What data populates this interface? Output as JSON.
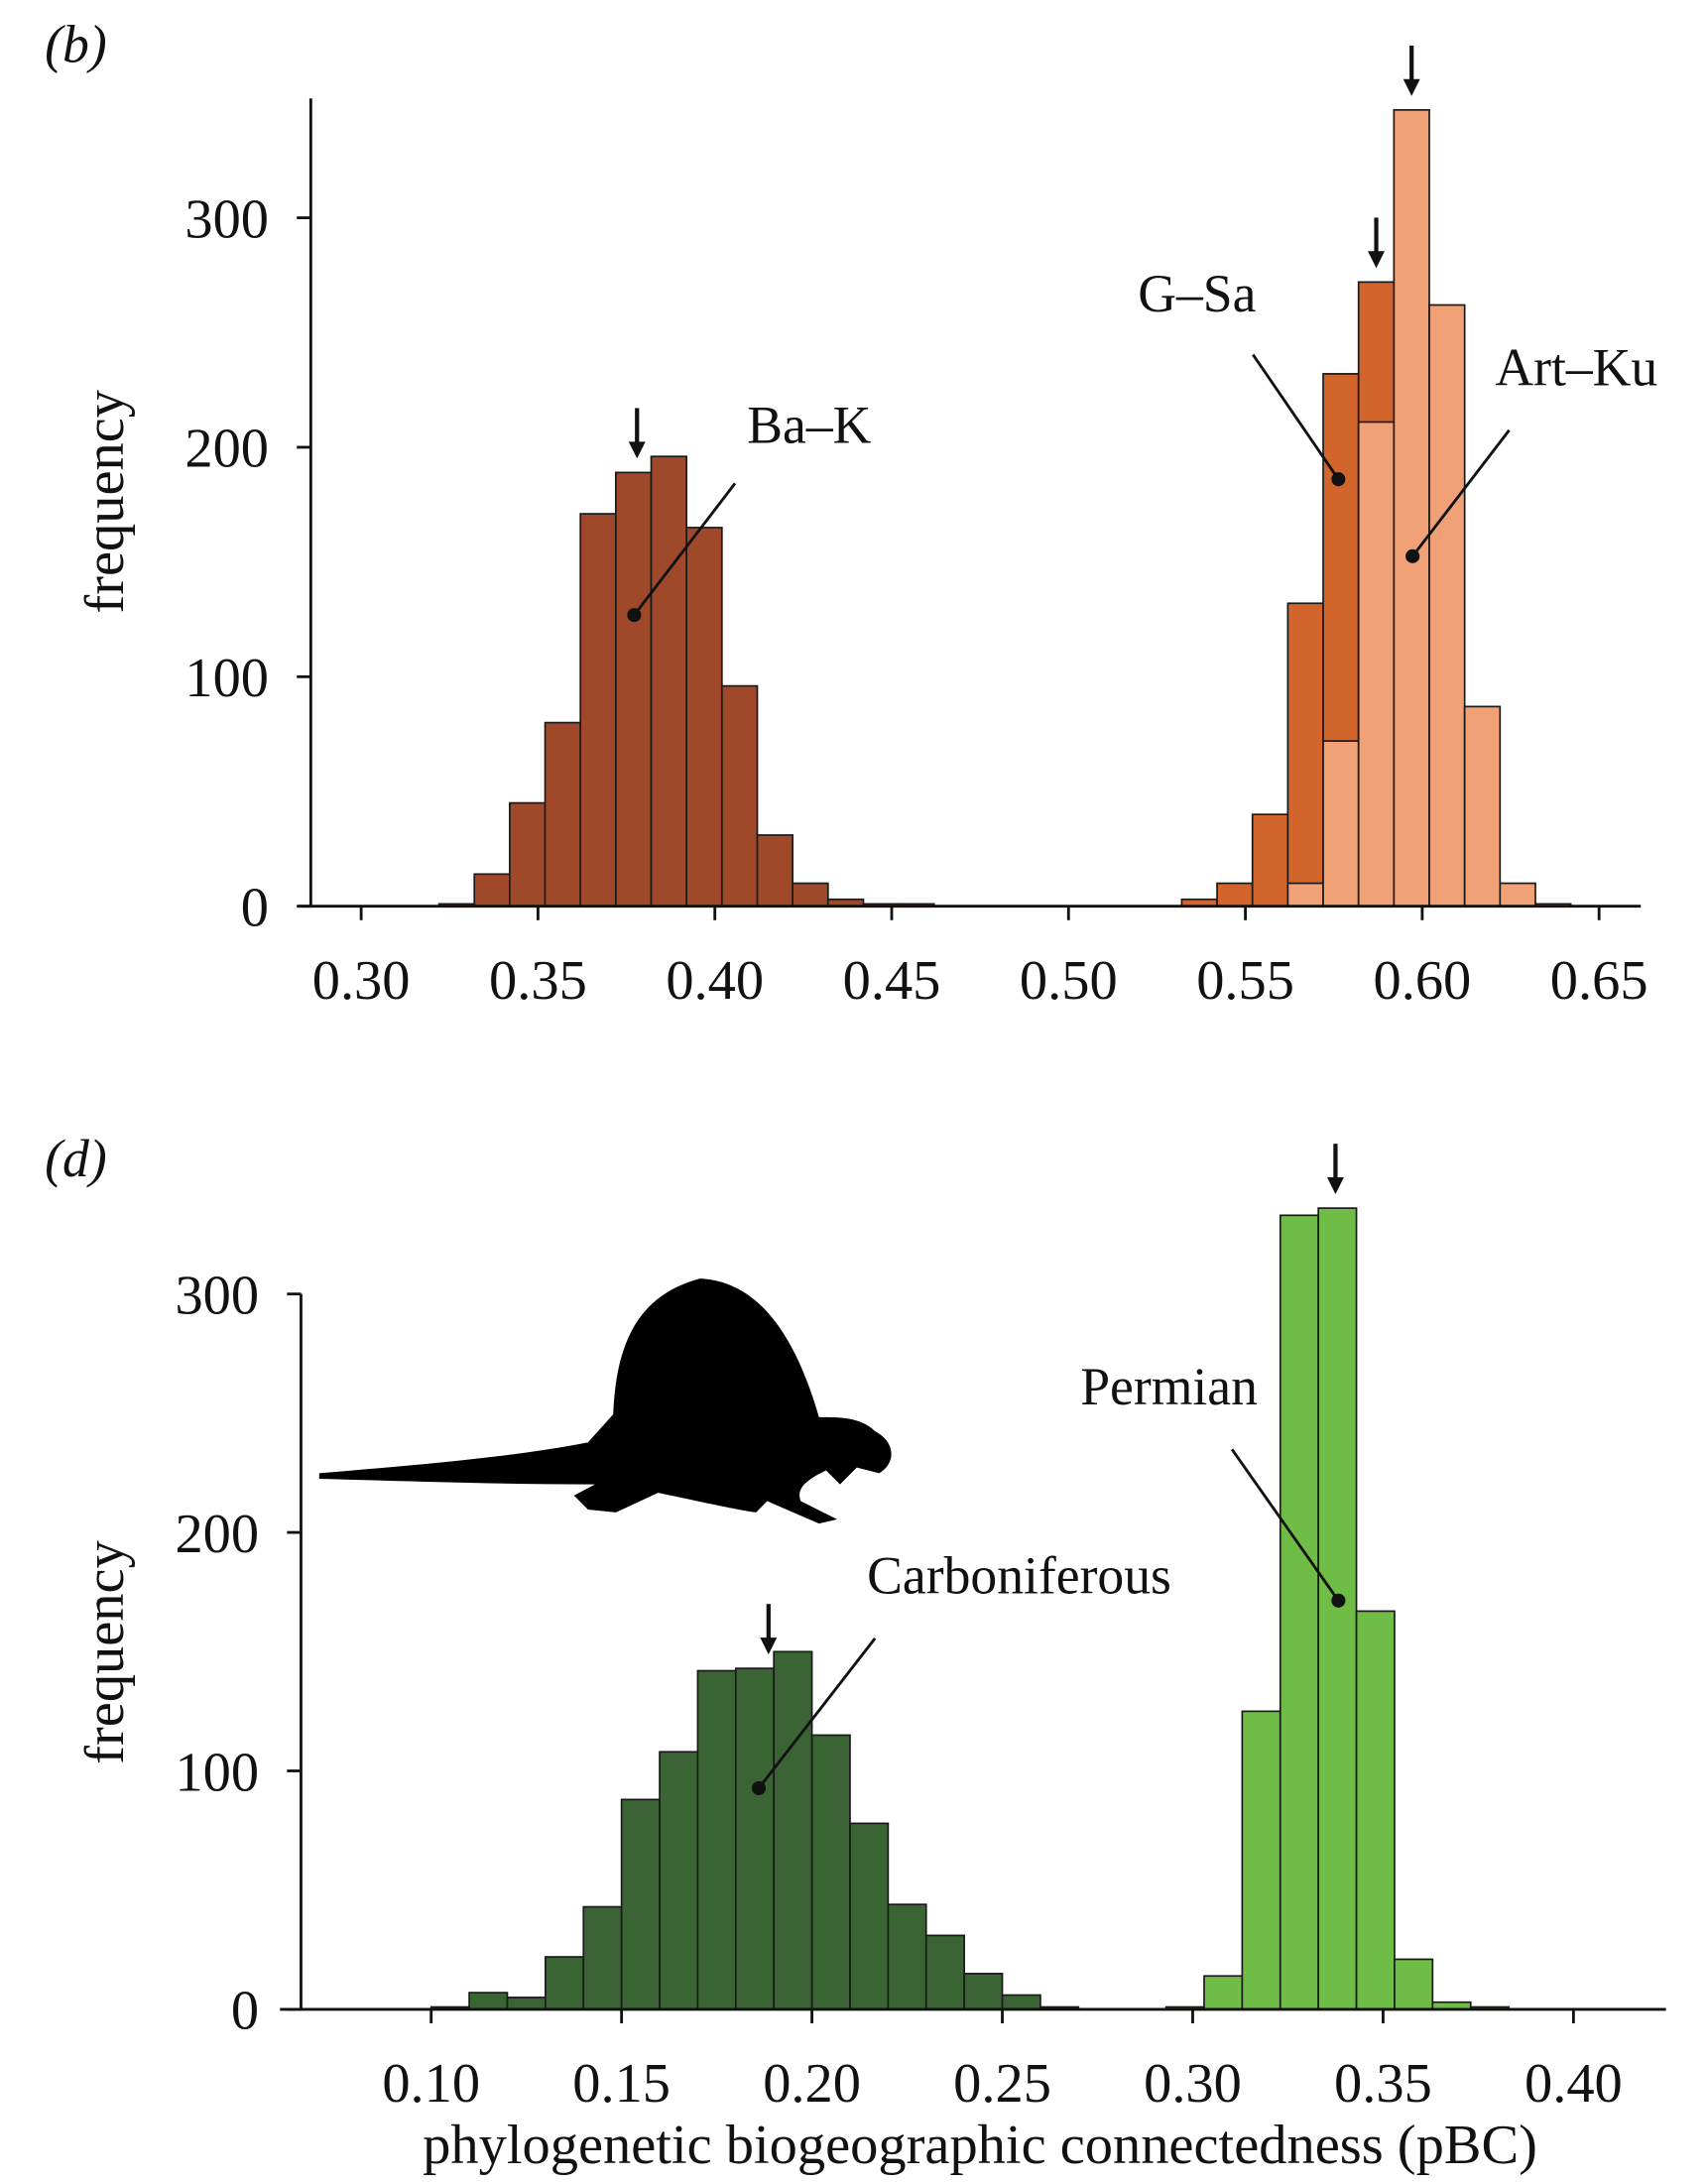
{
  "chart_data": [
    {
      "type": "histogram",
      "panel_label": "(b)",
      "ylabel": "frequency",
      "xlim": [
        0.2822,
        0.6618
      ],
      "ylim": [
        0,
        352
      ],
      "xticks": [
        {
          "value": 0.3,
          "label": "0.30"
        },
        {
          "value": 0.35,
          "label": "0.35"
        },
        {
          "value": 0.4,
          "label": "0.40"
        },
        {
          "value": 0.45,
          "label": "0.45"
        },
        {
          "value": 0.5,
          "label": "0.50"
        },
        {
          "value": 0.55,
          "label": "0.55"
        },
        {
          "value": 0.6,
          "label": "0.60"
        },
        {
          "value": 0.65,
          "label": "0.65"
        }
      ],
      "yticks": [
        0,
        100,
        200,
        300
      ],
      "series": [
        {
          "name": "Ba–K",
          "color": "#a0492a",
          "bins": [
            0.322,
            0.332,
            0.342,
            0.352,
            0.362,
            0.372,
            0.382,
            0.392,
            0.402,
            0.412,
            0.422,
            0.432,
            0.442,
            0.452,
            0.462
          ],
          "values": [
            1,
            14,
            45,
            80,
            171,
            189,
            196,
            165,
            96,
            31,
            10,
            3,
            1,
            1
          ],
          "arrow_x": 0.378
        },
        {
          "name": "G–Sa",
          "color": "#d2652b",
          "bins": [
            0.532,
            0.542,
            0.552,
            0.562,
            0.572,
            0.582,
            0.592
          ],
          "values": [
            3,
            10,
            40,
            132,
            232,
            272
          ],
          "arrow_x": 0.587
        },
        {
          "name": "Art–Ku",
          "color": "#f0a175",
          "bins": [
            0.562,
            0.572,
            0.582,
            0.592,
            0.602,
            0.612,
            0.622,
            0.632,
            0.642
          ],
          "values": [
            10,
            72,
            211,
            347,
            262,
            87,
            10,
            1
          ],
          "arrow_x": 0.597
        }
      ]
    },
    {
      "type": "histogram",
      "panel_label": "(d)",
      "ylabel": "frequency",
      "xlabel": "phylogenetic biogeographic connectedness (pBC)",
      "xlim": [
        0.0603,
        0.4243
      ],
      "ylim": [
        0,
        300
      ],
      "xticks": [
        {
          "value": 0.1,
          "label": "0.10"
        },
        {
          "value": 0.15,
          "label": "0.15"
        },
        {
          "value": 0.2,
          "label": "0.20"
        },
        {
          "value": 0.25,
          "label": "0.25"
        },
        {
          "value": 0.3,
          "label": "0.30"
        },
        {
          "value": 0.35,
          "label": "0.35"
        },
        {
          "value": 0.4,
          "label": "0.40"
        }
      ],
      "yticks": [
        0,
        100,
        200,
        300
      ],
      "series": [
        {
          "name": "Carboniferous",
          "color": "#3b6434",
          "bins": [
            0.1,
            0.11,
            0.12,
            0.13,
            0.14,
            0.15,
            0.16,
            0.17,
            0.18,
            0.19,
            0.2,
            0.21,
            0.22,
            0.23,
            0.24,
            0.25,
            0.26,
            0.27
          ],
          "values": [
            1,
            7,
            5,
            22,
            43,
            88,
            108,
            142,
            143,
            150,
            115,
            78,
            44,
            31,
            15,
            6,
            1
          ],
          "arrow_x": 0.1886
        },
        {
          "name": "Permian",
          "color": "#6fbd47",
          "bins": [
            0.293,
            0.303,
            0.313,
            0.323,
            0.333,
            0.343,
            0.353,
            0.363,
            0.373,
            0.383
          ],
          "values": [
            1,
            14,
            125,
            333,
            336,
            167,
            21,
            3,
            1
          ],
          "arrow_x": 0.3375
        }
      ]
    }
  ]
}
